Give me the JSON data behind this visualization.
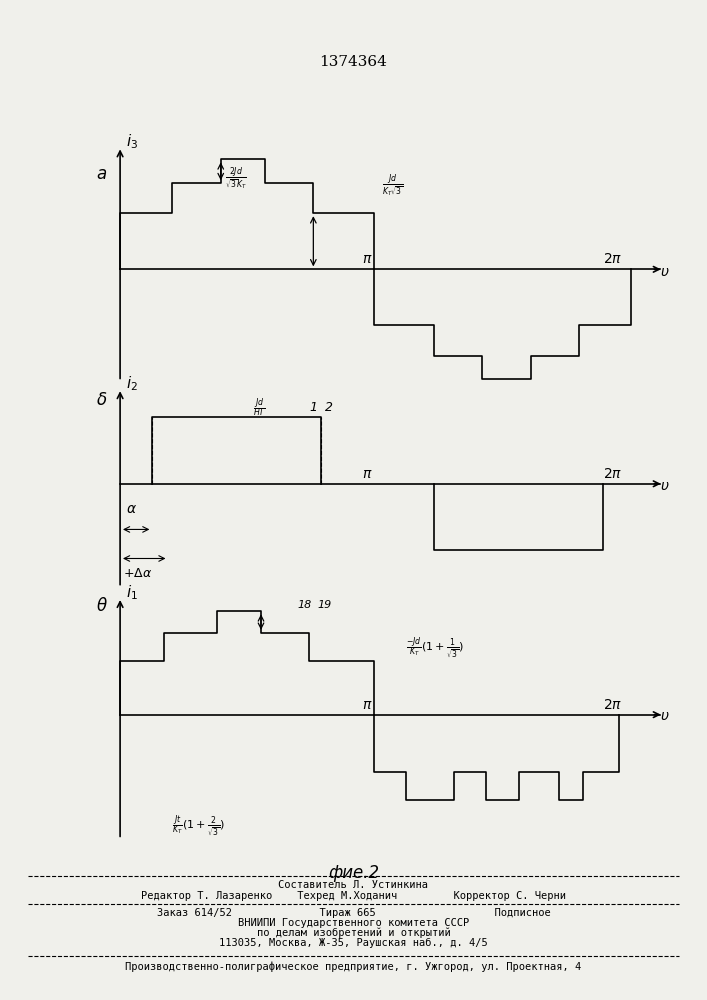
{
  "title": "1374364",
  "fig_caption": "фие.2",
  "background_color": "#f0f0eb",
  "line_color": "black",
  "footer_line1": "Составитель Л. Устинкина",
  "footer_line2": "Редактор Т. Лазаренко    Техред М.Ходанич         Корректор С. Черни",
  "footer_line3": "Заказ 614/52              Тираж 665                   Подписное",
  "footer_line4": "ВНИИПИ Государственного комитета СССР",
  "footer_line5": "по делам изобретений и открытий",
  "footer_line6": "113035, Москва, Ж-35, Раушская наб., д. 4/5",
  "footer_line7": "Производственно-полиграфическое предприятие, г. Ужгород, ул. Проектная, 4"
}
